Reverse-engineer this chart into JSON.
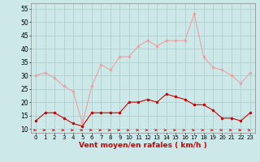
{
  "x": [
    0,
    1,
    2,
    3,
    4,
    5,
    6,
    7,
    8,
    9,
    10,
    11,
    12,
    13,
    14,
    15,
    16,
    17,
    18,
    19,
    20,
    21,
    22,
    23
  ],
  "rafales": [
    30,
    31,
    29,
    26,
    24,
    12,
    26,
    34,
    32,
    37,
    37,
    41,
    43,
    41,
    43,
    43,
    43,
    53,
    37,
    33,
    32,
    30,
    27,
    31
  ],
  "vent_moyen": [
    13,
    16,
    16,
    14,
    12,
    11,
    16,
    16,
    16,
    16,
    20,
    20,
    21,
    20,
    23,
    22,
    21,
    19,
    19,
    17,
    14,
    14,
    13,
    16
  ],
  "bg_color": "#cce8e8",
  "grid_color": "#aacccc",
  "line_color_rafales": "#f0a0a0",
  "line_color_vent": "#cc0000",
  "arrow_color": "#cc0000",
  "xlabel": "Vent moyen/en rafales ( km/h )",
  "xlabel_color": "#cc0000",
  "ylabel_min": 10,
  "ylabel_max": 55,
  "ylabel_step": 5,
  "xlim": [
    -0.5,
    23.5
  ],
  "ylim": [
    8.5,
    57
  ]
}
